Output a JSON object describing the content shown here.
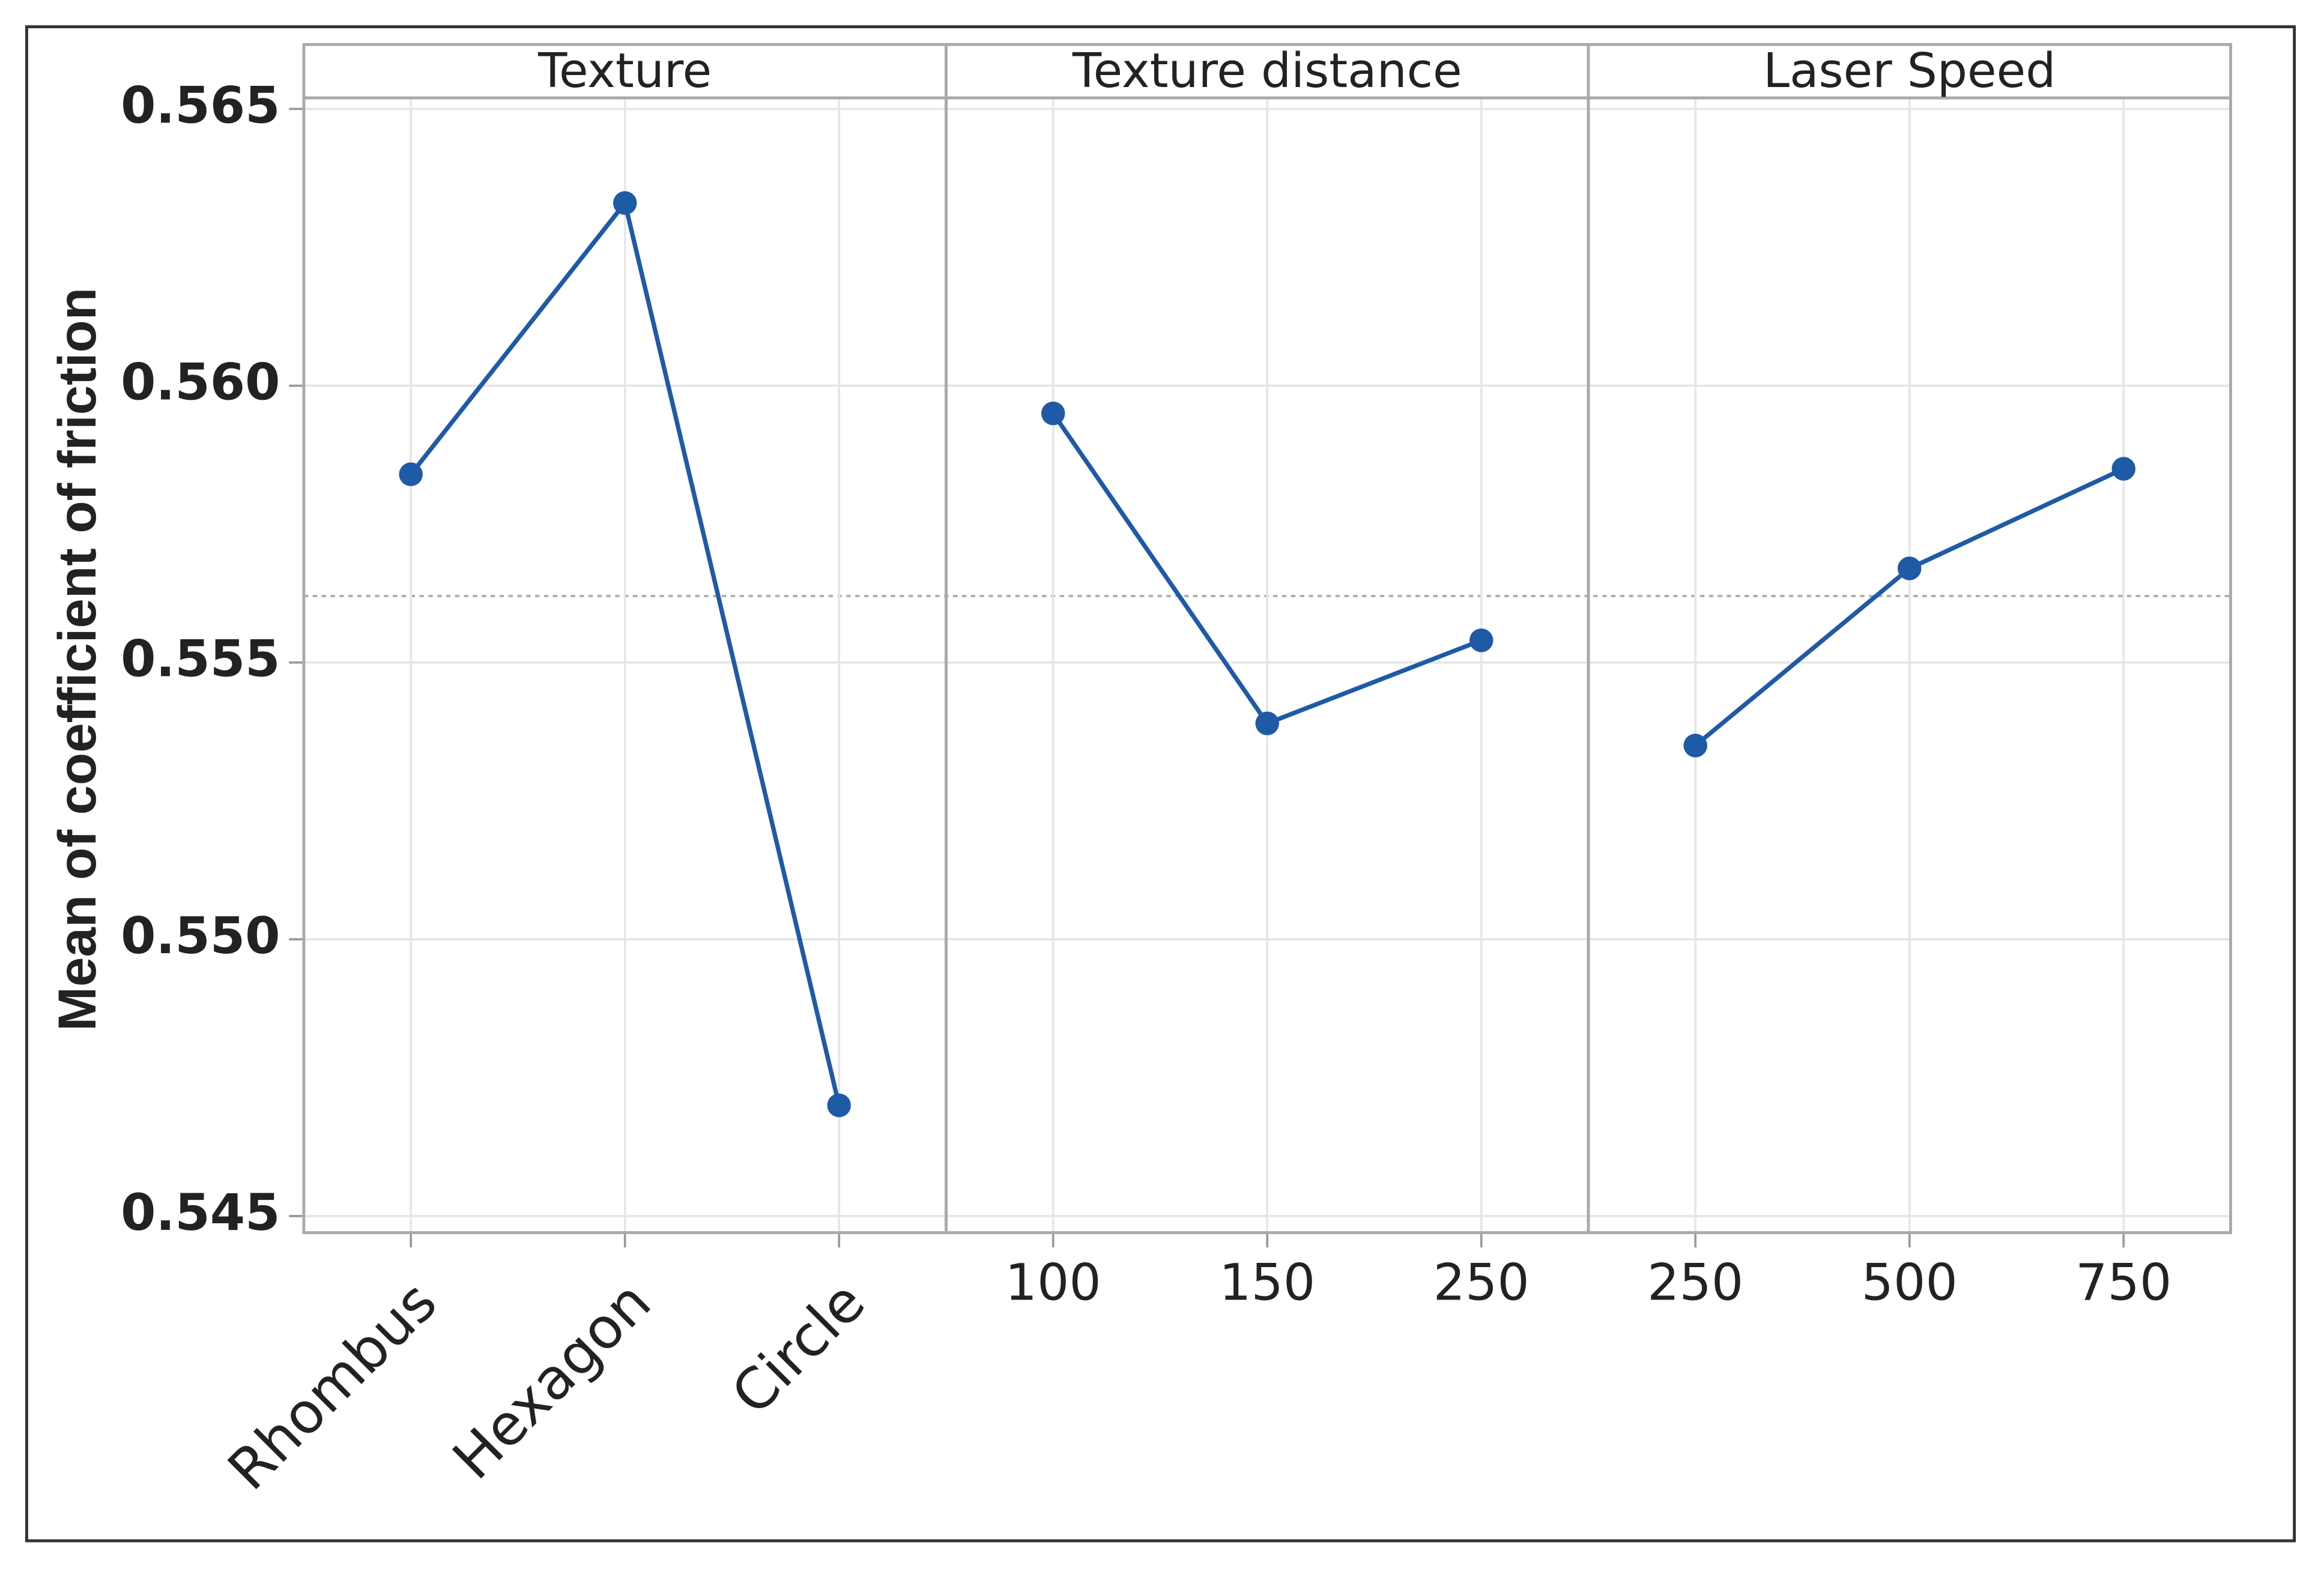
{
  "chart_data": {
    "type": "line",
    "ylabel": "Mean of coefficient  of friction",
    "ylim": [
      0.5447,
      0.5652
    ],
    "yticks": [
      0.545,
      {
        "value": 0.55,
        "label": "0.550"
      },
      0.555,
      {
        "value": 0.56,
        "label": "0.560"
      },
      0.565
    ],
    "grid": true,
    "reference_line": 0.5562,
    "color": "#1f5aa6",
    "panels": [
      {
        "title": "Texture",
        "categories": [
          "Rhombus",
          "Hexagon",
          "Circle"
        ],
        "values": [
          0.5584,
          0.5633,
          0.547
        ],
        "rotate_labels": true
      },
      {
        "title": "Texture distance",
        "categories": [
          "100",
          "150",
          "250"
        ],
        "values": [
          0.5595,
          0.5539,
          0.5554
        ],
        "rotate_labels": false
      },
      {
        "title": "Laser Speed",
        "categories": [
          "250",
          "500",
          "750"
        ],
        "values": [
          0.5535,
          0.5567,
          0.5585
        ],
        "rotate_labels": false
      }
    ]
  }
}
